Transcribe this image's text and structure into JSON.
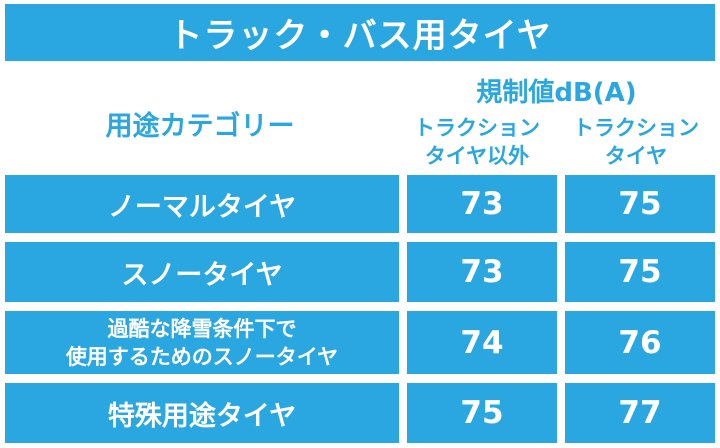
{
  "title": "トラック・バス用タイヤ",
  "header": {
    "category": "用途カテゴリー",
    "limit": "規制値dB(A)",
    "col1": [
      "トラクション",
      "タイヤ以外"
    ],
    "col2": [
      "トラクション",
      "タイヤ"
    ]
  },
  "rows": [
    {
      "category": [
        "ノーマルタイヤ"
      ],
      "v1": "73",
      "v2": "75"
    },
    {
      "category": [
        "スノータイヤ"
      ],
      "v1": "73",
      "v2": "75"
    },
    {
      "category": [
        "過酷な降雪条件下で",
        "使用するためのスノータイヤ"
      ],
      "v1": "74",
      "v2": "76"
    },
    {
      "category": [
        "特殊用途タイヤ"
      ],
      "v1": "75",
      "v2": "77"
    }
  ],
  "colors": {
    "accent": "#2aa7e1",
    "text_on_accent": "#ffffff"
  }
}
